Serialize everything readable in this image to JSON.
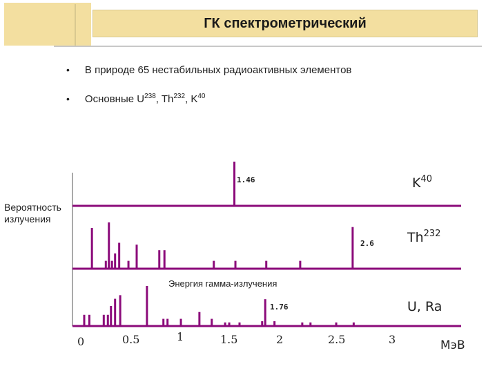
{
  "title": "ГК спектрометрический",
  "bullets": [
    {
      "text": "В природе 65 нестабильных радиоактивных элементов"
    },
    {
      "text_parts": [
        "Основные U",
        "238",
        ", Th",
        "232",
        ", K",
        "40"
      ]
    }
  ],
  "colors": {
    "accent": "#8b0a7a",
    "title_bg": "#f3dfa0"
  },
  "chart_data": {
    "type": "bar",
    "ylabel": [
      "Вероятность",
      "излучения"
    ],
    "xlabel": "Энергия гамма-излучения",
    "unit": "МэВ",
    "x_ticks": [
      "0",
      "0.5",
      "1",
      "1.5",
      "2",
      "2.5",
      "3"
    ],
    "xlim": [
      0,
      3.2
    ],
    "series": [
      {
        "name_base": "K",
        "name_sup": "40",
        "peak_label": "1.46",
        "peak_at": 1.46,
        "lines": [
          {
            "e": 1.46,
            "p": 1.0
          }
        ]
      },
      {
        "name_base": "Th",
        "name_sup": "232",
        "peak_label": "2.6",
        "peak_at": 2.61,
        "lines": [
          {
            "e": 0.075,
            "p": 0.88
          },
          {
            "e": 0.21,
            "p": 0.17
          },
          {
            "e": 0.24,
            "p": 0.17
          },
          {
            "e": 0.27,
            "p": 0.17
          },
          {
            "e": 0.24,
            "p": 1.0
          },
          {
            "e": 0.3,
            "p": 0.33
          },
          {
            "e": 0.34,
            "p": 0.56
          },
          {
            "e": 0.43,
            "p": 0.17
          },
          {
            "e": 0.51,
            "p": 0.52
          },
          {
            "e": 0.73,
            "p": 0.4
          },
          {
            "e": 0.78,
            "p": 0.4
          },
          {
            "e": 1.26,
            "p": 0.17
          },
          {
            "e": 1.47,
            "p": 0.17
          },
          {
            "e": 1.77,
            "p": 0.17
          },
          {
            "e": 2.1,
            "p": 0.17
          },
          {
            "e": 2.61,
            "p": 0.9
          }
        ]
      },
      {
        "name_base": "U, Ra",
        "name_sup": "",
        "peak_label": "1.76",
        "peak_at": 1.76,
        "lines": [
          {
            "e": 0.0,
            "p": 0.28
          },
          {
            "e": 0.05,
            "p": 0.28
          },
          {
            "e": 0.19,
            "p": 0.28
          },
          {
            "e": 0.23,
            "p": 0.28
          },
          {
            "e": 0.26,
            "p": 0.5
          },
          {
            "e": 0.3,
            "p": 0.68
          },
          {
            "e": 0.35,
            "p": 0.77
          },
          {
            "e": 0.61,
            "p": 1.0
          },
          {
            "e": 0.77,
            "p": 0.18
          },
          {
            "e": 0.81,
            "p": 0.18
          },
          {
            "e": 0.94,
            "p": 0.18
          },
          {
            "e": 1.12,
            "p": 0.35
          },
          {
            "e": 1.24,
            "p": 0.18
          },
          {
            "e": 1.37,
            "p": 0.09
          },
          {
            "e": 1.41,
            "p": 0.09
          },
          {
            "e": 1.51,
            "p": 0.09
          },
          {
            "e": 1.73,
            "p": 0.12
          },
          {
            "e": 1.76,
            "p": 0.67
          },
          {
            "e": 1.85,
            "p": 0.12
          },
          {
            "e": 2.12,
            "p": 0.09
          },
          {
            "e": 2.2,
            "p": 0.09
          },
          {
            "e": 2.45,
            "p": 0.09
          },
          {
            "e": 2.62,
            "p": 0.09
          }
        ]
      }
    ]
  }
}
